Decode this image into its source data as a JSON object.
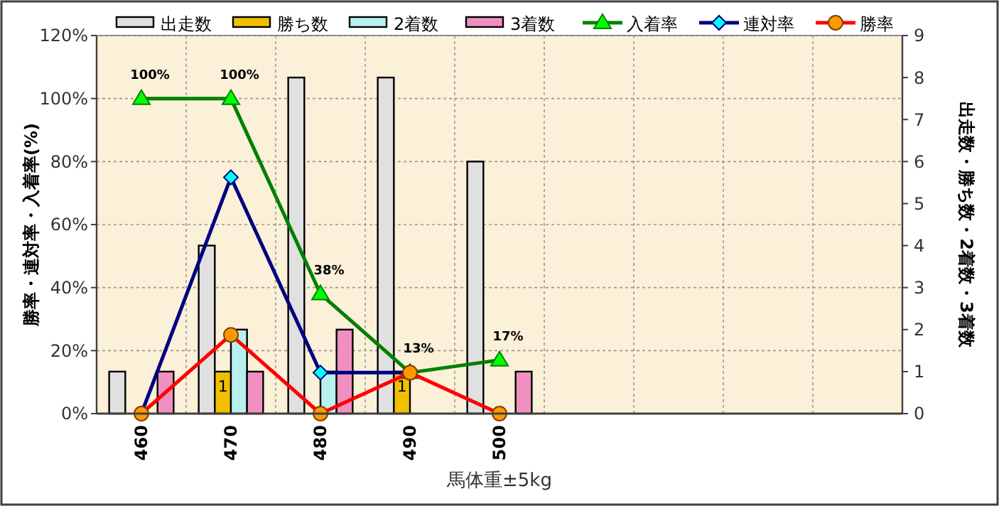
{
  "chart_data": {
    "type": "bar",
    "xlabel": "馬体重±5kg",
    "ylabel": "勝率・連対率・入着率(%)",
    "y2label": "出走数・勝ち数・2着数・3着数",
    "categories": [
      "460",
      "470",
      "480",
      "490",
      "500",
      null,
      null,
      null,
      null
    ],
    "ylim": [
      0,
      120
    ],
    "yticks": [
      {
        "value": 0,
        "label": "0%"
      },
      {
        "value": 20,
        "label": "20%"
      },
      {
        "value": 40,
        "label": "40%"
      },
      {
        "value": 60,
        "label": "60%"
      },
      {
        "value": 80,
        "label": "80%"
      },
      {
        "value": 100,
        "label": "100%"
      },
      {
        "value": 120,
        "label": "120%"
      }
    ],
    "y2lim": [
      0,
      9
    ],
    "y2ticks": [
      0,
      1,
      2,
      3,
      4,
      5,
      6,
      7,
      8,
      9
    ],
    "grid": true,
    "legend": "top",
    "series": [
      {
        "name": "出走数",
        "axis": "y2",
        "color": "#e0e0e0",
        "values": [
          1,
          4,
          8,
          8,
          6,
          null,
          null,
          null,
          null
        ]
      },
      {
        "name": "勝ち数",
        "axis": "y2",
        "color": "#f0c000",
        "values": [
          0,
          1,
          0,
          1,
          0,
          null,
          null,
          null,
          null
        ],
        "value_labels": [
          null,
          "1",
          null,
          "1",
          null,
          null,
          null,
          null,
          null
        ]
      },
      {
        "name": "2着数",
        "axis": "y2",
        "color": "#b8f0f0",
        "values": [
          0,
          2,
          1,
          0,
          0,
          null,
          null,
          null,
          null
        ]
      },
      {
        "name": "3着数",
        "axis": "y2",
        "color": "#f090c0",
        "values": [
          1,
          1,
          2,
          0,
          1,
          null,
          null,
          null,
          null
        ]
      },
      {
        "name": "入着率",
        "type": "line",
        "color": "#008000",
        "marker": "triangle",
        "values": [
          100,
          100,
          38,
          13,
          17,
          null,
          null,
          null,
          null
        ],
        "value_labels": [
          "100%",
          "100%",
          "38%",
          "13%",
          "17%",
          null,
          null,
          null,
          null
        ]
      },
      {
        "name": "連対率",
        "type": "line",
        "color": "#000080",
        "marker": "diamond",
        "values": [
          0,
          75,
          13,
          13,
          null,
          null,
          null,
          null,
          null
        ]
      },
      {
        "name": "勝率",
        "type": "line",
        "color": "#ff0000",
        "marker": "circle",
        "values": [
          0,
          25,
          0,
          13,
          0,
          null,
          null,
          null,
          null
        ]
      }
    ]
  }
}
